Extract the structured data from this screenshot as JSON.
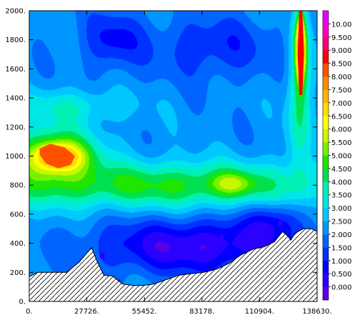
{
  "chart_data": {
    "type": "heatmap",
    "title": "",
    "xlabel": "",
    "ylabel": "",
    "xlim": [
      0,
      138630
    ],
    "ylim": [
      0,
      2000
    ],
    "x_ticks": [
      "0.",
      "27726.",
      "55452.",
      "83178.",
      "110904.",
      "138630."
    ],
    "y_ticks": [
      "0.",
      "200.",
      "400.",
      "600.",
      "800.",
      "1000.",
      "1200.",
      "1400.",
      "1600.",
      "1800.",
      "2000."
    ],
    "grid": false,
    "colorbar": {
      "levels": [
        "0.000",
        "0.500",
        "1.000",
        "1.500",
        "2.000",
        "2.500",
        "3.000",
        "3.500",
        "4.000",
        "4.500",
        "5.000",
        "5.500",
        "6.000",
        "6.500",
        "7.000",
        "7.500",
        "8.000",
        "8.500",
        "9.000",
        "9.500",
        "10.00"
      ],
      "colors": [
        "#5a00e6",
        "#2a00ff",
        "#0000ff",
        "#0032ff",
        "#0064ff",
        "#0096ff",
        "#00c8ff",
        "#00e6e6",
        "#00f0b4",
        "#00e050",
        "#1ee600",
        "#78f000",
        "#c8f500",
        "#ffff00",
        "#ffdc00",
        "#ffb400",
        "#ff8c00",
        "#ff5000",
        "#ff0000",
        "#ff0078",
        "#ff00c8",
        "#e600ff"
      ]
    },
    "terrain": {
      "x": [
        0,
        4000,
        8000,
        12000,
        18000,
        24000,
        27000,
        30000,
        33000,
        36000,
        40000,
        45000,
        50000,
        55000,
        60000,
        66000,
        72000,
        78000,
        84000,
        90000,
        96000,
        102000,
        108000,
        113000,
        118000,
        122000,
        124500,
        126000,
        128000,
        132000,
        136000,
        138630
      ],
      "y": [
        170,
        200,
        200,
        200,
        200,
        270,
        320,
        370,
        265,
        180,
        175,
        120,
        110,
        110,
        120,
        150,
        180,
        190,
        200,
        220,
        260,
        320,
        360,
        375,
        410,
        480,
        450,
        420,
        470,
        500,
        500,
        480
      ]
    },
    "features": [
      {
        "level": 8.0,
        "x": [
          5000,
          10000,
          17000,
          22000,
          20000,
          14000,
          8000,
          5000
        ],
        "y": [
          1050,
          1085,
          1060,
          1000,
          940,
          915,
          950,
          1010
        ]
      },
      {
        "level": 8.5,
        "x": [
          130000,
          131500,
          132300,
          131500,
          130000,
          129300,
          130000
        ],
        "y": [
          2000,
          2000,
          1700,
          1420,
          1420,
          1700,
          2000
        ]
      },
      {
        "level": 0.0,
        "x": [
          34000,
          36500,
          36000,
          34000
        ],
        "y": [
          340,
          330,
          280,
          300
        ]
      },
      {
        "level": 0.0,
        "x": [
          40000,
          44000,
          43500,
          40000
        ],
        "y": [
          150,
          150,
          110,
          120
        ]
      },
      {
        "level": 0.0,
        "x": [
          73000,
          75000,
          74500,
          73000
        ],
        "y": [
          420,
          400,
          360,
          380
        ]
      },
      {
        "level": 0.0,
        "x": [
          92000,
          94000,
          93500,
          92000
        ],
        "y": [
          470,
          450,
          400,
          420
        ]
      },
      {
        "level": 0.0,
        "x": [
          120000,
          122500,
          122000,
          120000
        ],
        "y": [
          560,
          560,
          520,
          520
        ]
      }
    ]
  }
}
